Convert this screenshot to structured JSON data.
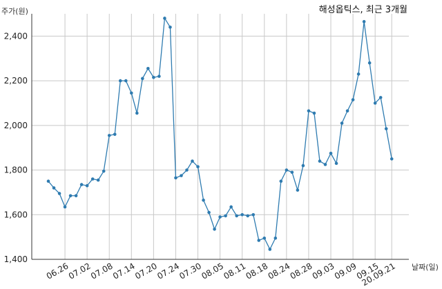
{
  "chart_data": {
    "type": "line",
    "title": "해성옵틱스, 최근 3개월",
    "ylabel": "주가(원)",
    "xlabel": "날짜(일)",
    "ylim": [
      1400,
      2500
    ],
    "yticks": [
      1400,
      1600,
      1800,
      2000,
      2200,
      2400
    ],
    "ytick_labels": [
      "1,400",
      "1,600",
      "1,800",
      "2,000",
      "2,200",
      "2,400"
    ],
    "grid": true,
    "xtick_labels": [
      "06.26",
      "07.02",
      "07.08",
      "07.14",
      "07.20",
      "07.24",
      "07.30",
      "08.05",
      "08.11",
      "08.18",
      "08.24",
      "08.28",
      "09.03",
      "09.09",
      "09.15",
      "20.09.21"
    ],
    "xtick_index": [
      3,
      7,
      11,
      15,
      19,
      23,
      27,
      31,
      35,
      39,
      43,
      47,
      51,
      55,
      59,
      62
    ],
    "values": [
      1750,
      1720,
      1695,
      1635,
      1685,
      1685,
      1735,
      1730,
      1760,
      1755,
      1795,
      1955,
      1960,
      2200,
      2200,
      2145,
      2055,
      2210,
      2255,
      2215,
      2220,
      2480,
      2440,
      1765,
      1775,
      1800,
      1840,
      1815,
      1665,
      1610,
      1535,
      1590,
      1595,
      1635,
      1595,
      1600,
      1595,
      1600,
      1485,
      1495,
      1445,
      1495,
      1750,
      1800,
      1790,
      1710,
      1820,
      2065,
      2055,
      1840,
      1825,
      1875,
      1830,
      2010,
      2065,
      2115,
      2230,
      2465,
      2280,
      2100,
      2125,
      1985,
      1850
    ]
  }
}
